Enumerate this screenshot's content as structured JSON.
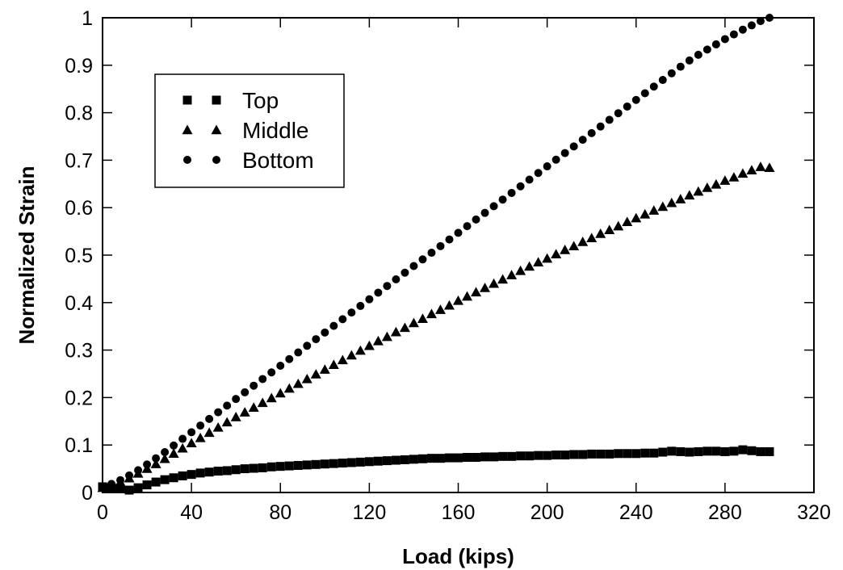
{
  "chart_data": {
    "type": "scatter",
    "xlabel": "Load (kips)",
    "ylabel": "Normalized Strain",
    "xlim": [
      0,
      320
    ],
    "ylim": [
      0,
      1
    ],
    "xticks": [
      0,
      40,
      80,
      120,
      160,
      200,
      240,
      280,
      320
    ],
    "xtick_labels": [
      "0",
      "40",
      "80",
      "120",
      "160",
      "200",
      "240",
      "280",
      "320"
    ],
    "yticks": [
      0,
      0.1,
      0.2,
      0.3,
      0.4,
      0.5,
      0.6,
      0.7,
      0.8,
      0.9,
      1
    ],
    "ytick_labels": [
      "0",
      "0.1",
      "0.2",
      "0.3",
      "0.4",
      "0.5",
      "0.6",
      "0.7",
      "0.8",
      "0.9",
      "1"
    ],
    "grid": false,
    "legend_position": "top-left",
    "series": [
      {
        "name": "Top",
        "marker": "square",
        "color": "#000000",
        "x": [
          0,
          4,
          8,
          12,
          16,
          20,
          24,
          28,
          32,
          36,
          40,
          44,
          48,
          52,
          56,
          60,
          64,
          68,
          72,
          76,
          80,
          84,
          88,
          92,
          96,
          100,
          104,
          108,
          112,
          116,
          120,
          124,
          128,
          132,
          136,
          140,
          144,
          148,
          152,
          156,
          160,
          164,
          168,
          172,
          176,
          180,
          184,
          188,
          192,
          196,
          200,
          204,
          208,
          212,
          216,
          220,
          224,
          228,
          232,
          236,
          240,
          244,
          248,
          252,
          256,
          260,
          264,
          268,
          272,
          276,
          280,
          284,
          288,
          292,
          296,
          300
        ],
        "y": [
          0.012,
          0.01,
          0.008,
          0.005,
          0.01,
          0.016,
          0.022,
          0.027,
          0.031,
          0.035,
          0.038,
          0.041,
          0.043,
          0.045,
          0.046,
          0.048,
          0.05,
          0.051,
          0.052,
          0.054,
          0.055,
          0.056,
          0.057,
          0.058,
          0.059,
          0.06,
          0.061,
          0.062,
          0.063,
          0.064,
          0.065,
          0.066,
          0.067,
          0.068,
          0.069,
          0.07,
          0.071,
          0.072,
          0.072,
          0.073,
          0.073,
          0.074,
          0.074,
          0.075,
          0.075,
          0.076,
          0.076,
          0.077,
          0.077,
          0.078,
          0.078,
          0.079,
          0.079,
          0.08,
          0.08,
          0.081,
          0.081,
          0.081,
          0.082,
          0.082,
          0.082,
          0.083,
          0.083,
          0.085,
          0.087,
          0.086,
          0.085,
          0.086,
          0.087,
          0.087,
          0.086,
          0.087,
          0.09,
          0.088,
          0.086,
          0.086
        ]
      },
      {
        "name": "Middle",
        "marker": "triangle",
        "color": "#000000",
        "x": [
          0,
          4,
          8,
          12,
          16,
          20,
          24,
          28,
          32,
          36,
          40,
          44,
          48,
          52,
          56,
          60,
          64,
          68,
          72,
          76,
          80,
          84,
          88,
          92,
          96,
          100,
          104,
          108,
          112,
          116,
          120,
          124,
          128,
          132,
          136,
          140,
          144,
          148,
          152,
          156,
          160,
          164,
          168,
          172,
          176,
          180,
          184,
          188,
          192,
          196,
          200,
          204,
          208,
          212,
          216,
          220,
          224,
          228,
          232,
          236,
          240,
          244,
          248,
          252,
          256,
          260,
          264,
          268,
          272,
          276,
          280,
          284,
          288,
          292,
          296,
          300
        ],
        "y": [
          0.01,
          0.015,
          0.022,
          0.03,
          0.04,
          0.05,
          0.06,
          0.071,
          0.082,
          0.093,
          0.104,
          0.115,
          0.126,
          0.137,
          0.148,
          0.159,
          0.169,
          0.179,
          0.189,
          0.199,
          0.209,
          0.219,
          0.229,
          0.239,
          0.249,
          0.259,
          0.269,
          0.279,
          0.289,
          0.299,
          0.309,
          0.319,
          0.328,
          0.338,
          0.347,
          0.357,
          0.366,
          0.376,
          0.385,
          0.394,
          0.404,
          0.413,
          0.422,
          0.431,
          0.44,
          0.449,
          0.458,
          0.467,
          0.476,
          0.485,
          0.493,
          0.502,
          0.511,
          0.519,
          0.528,
          0.536,
          0.545,
          0.553,
          0.561,
          0.57,
          0.578,
          0.586,
          0.594,
          0.602,
          0.61,
          0.618,
          0.626,
          0.634,
          0.642,
          0.649,
          0.657,
          0.664,
          0.672,
          0.679,
          0.686,
          0.684
        ]
      },
      {
        "name": "Bottom",
        "marker": "circle",
        "color": "#000000",
        "x": [
          0,
          4,
          8,
          12,
          16,
          20,
          24,
          28,
          32,
          36,
          40,
          44,
          48,
          52,
          56,
          60,
          64,
          68,
          72,
          76,
          80,
          84,
          88,
          92,
          96,
          100,
          104,
          108,
          112,
          116,
          120,
          124,
          128,
          132,
          136,
          140,
          144,
          148,
          152,
          156,
          160,
          164,
          168,
          172,
          176,
          180,
          184,
          188,
          192,
          196,
          200,
          204,
          208,
          212,
          216,
          220,
          224,
          228,
          232,
          236,
          240,
          244,
          248,
          252,
          256,
          260,
          264,
          268,
          272,
          276,
          280,
          284,
          288,
          292,
          296,
          300
        ],
        "y": [
          0.012,
          0.018,
          0.026,
          0.036,
          0.047,
          0.059,
          0.072,
          0.085,
          0.099,
          0.113,
          0.127,
          0.141,
          0.155,
          0.169,
          0.183,
          0.197,
          0.211,
          0.225,
          0.239,
          0.253,
          0.267,
          0.281,
          0.295,
          0.309,
          0.323,
          0.337,
          0.351,
          0.365,
          0.379,
          0.393,
          0.407,
          0.421,
          0.435,
          0.449,
          0.463,
          0.477,
          0.491,
          0.505,
          0.519,
          0.533,
          0.547,
          0.561,
          0.575,
          0.589,
          0.603,
          0.617,
          0.631,
          0.645,
          0.659,
          0.673,
          0.687,
          0.701,
          0.715,
          0.729,
          0.743,
          0.757,
          0.771,
          0.785,
          0.799,
          0.813,
          0.827,
          0.841,
          0.855,
          0.869,
          0.883,
          0.897,
          0.91,
          0.922,
          0.933,
          0.944,
          0.955,
          0.965,
          0.975,
          0.984,
          0.993,
          1.0
        ]
      }
    ]
  }
}
